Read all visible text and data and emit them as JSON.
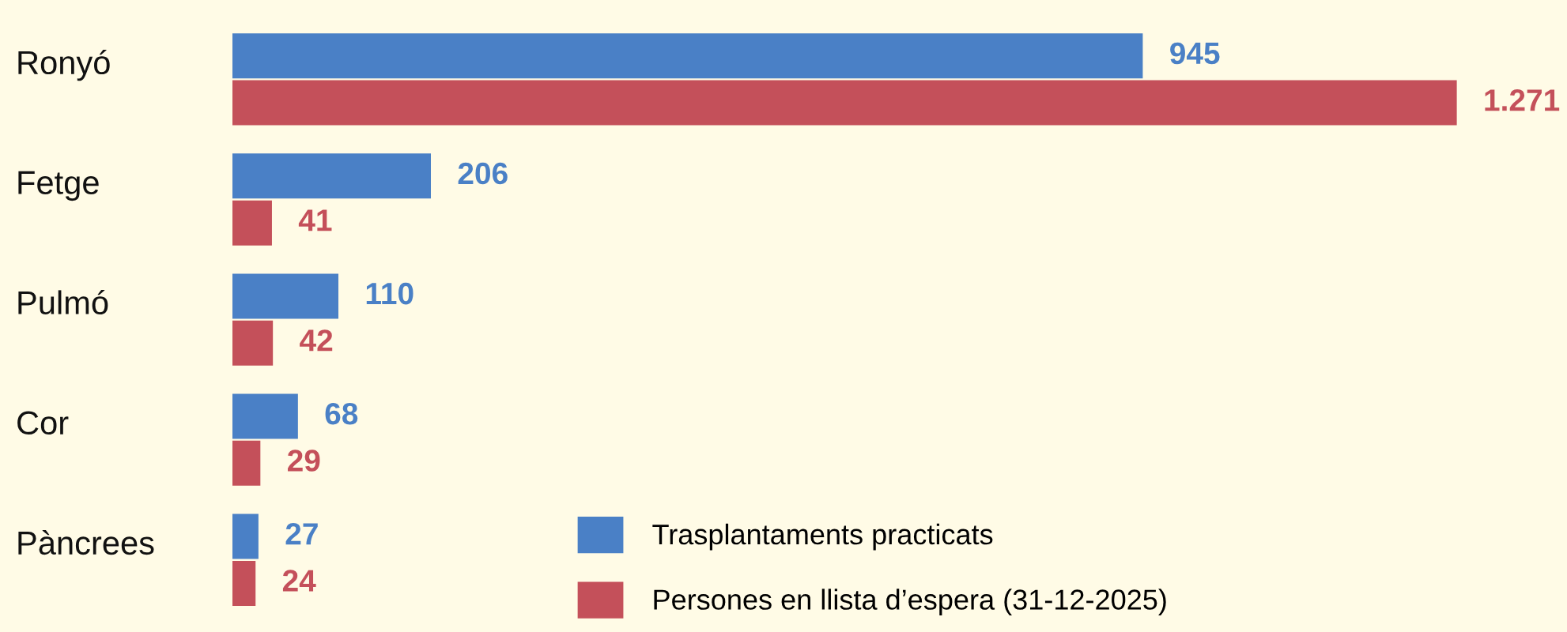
{
  "chart_data": {
    "type": "bar",
    "orientation": "horizontal",
    "categories": [
      "Ronyó",
      "Fetge",
      "Pulmó",
      "Cor",
      "Pàncrees"
    ],
    "series": [
      {
        "name": "Trasplantaments practicats",
        "color": "#4a80c6",
        "values": [
          945,
          206,
          110,
          68,
          27
        ],
        "value_labels": [
          "945",
          "206",
          "110",
          "68",
          "27"
        ]
      },
      {
        "name": "Persones en llista d’espera (31-12-2025)",
        "color": "#c4505a",
        "values": [
          1271,
          41,
          42,
          29,
          24
        ],
        "value_labels": [
          "1.271",
          "41",
          "42",
          "29",
          "24"
        ]
      }
    ],
    "legend": "bottom right"
  }
}
